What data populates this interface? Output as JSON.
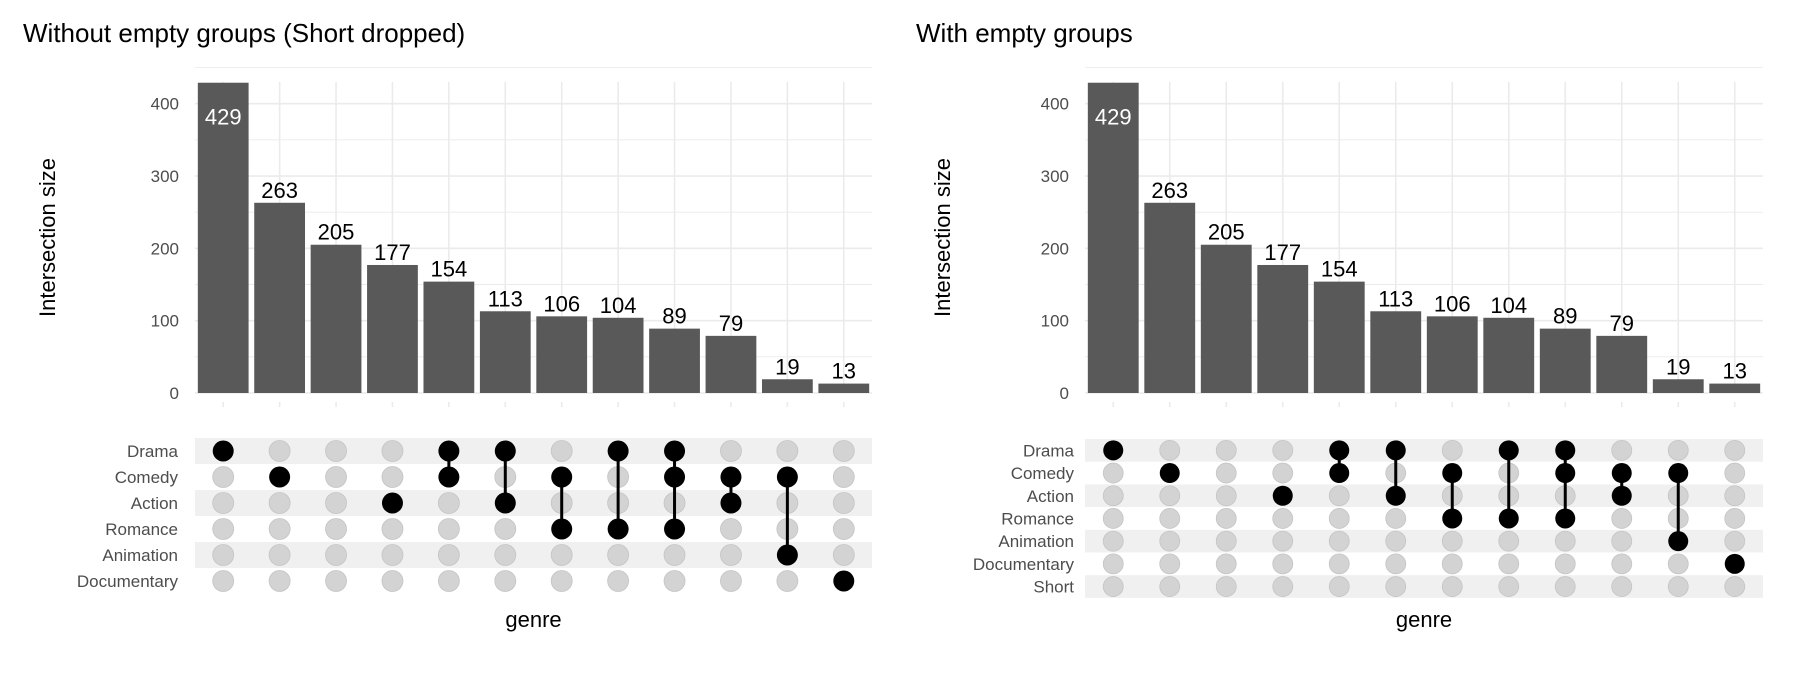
{
  "chart_data": [
    {
      "type": "bar",
      "title": "Without empty groups (Short dropped)",
      "ylabel": "Intersection size",
      "xlabel": "genre",
      "ylim": [
        0,
        430
      ],
      "yticks": [
        0,
        100,
        200,
        300,
        400
      ],
      "values": [
        429,
        263,
        205,
        177,
        154,
        113,
        106,
        104,
        89,
        79,
        19,
        13
      ],
      "sets": [
        "Drama",
        "Comedy",
        "Action",
        "Romance",
        "Animation",
        "Documentary"
      ],
      "intersections": [
        [
          "Drama"
        ],
        [
          "Comedy"
        ],
        [],
        [
          "Action"
        ],
        [
          "Drama",
          "Comedy"
        ],
        [
          "Drama",
          "Action"
        ],
        [
          "Comedy",
          "Romance"
        ],
        [
          "Drama",
          "Romance"
        ],
        [
          "Drama",
          "Comedy",
          "Romance"
        ],
        [
          "Comedy",
          "Action"
        ],
        [
          "Comedy",
          "Animation"
        ],
        [
          "Documentary"
        ]
      ],
      "grid": true
    },
    {
      "type": "bar",
      "title": "With empty groups",
      "ylabel": "Intersection size",
      "xlabel": "genre",
      "ylim": [
        0,
        430
      ],
      "yticks": [
        0,
        100,
        200,
        300,
        400
      ],
      "values": [
        429,
        263,
        205,
        177,
        154,
        113,
        106,
        104,
        89,
        79,
        19,
        13
      ],
      "sets": [
        "Drama",
        "Comedy",
        "Action",
        "Romance",
        "Animation",
        "Documentary",
        "Short"
      ],
      "intersections": [
        [
          "Drama"
        ],
        [
          "Comedy"
        ],
        [],
        [
          "Action"
        ],
        [
          "Drama",
          "Comedy"
        ],
        [
          "Drama",
          "Action"
        ],
        [
          "Comedy",
          "Romance"
        ],
        [
          "Drama",
          "Romance"
        ],
        [
          "Drama",
          "Comedy",
          "Romance"
        ],
        [
          "Comedy",
          "Action"
        ],
        [
          "Comedy",
          "Animation"
        ],
        [
          "Documentary"
        ]
      ],
      "grid": true
    }
  ],
  "colors": {
    "bar": "#595959",
    "dot_active": "#000000",
    "dot_inactive": "#d3d3d3",
    "grid": "#ebebeb",
    "stripe": "#f0f0f0",
    "text": "#000000",
    "tick_text": "#4d4d4d"
  }
}
